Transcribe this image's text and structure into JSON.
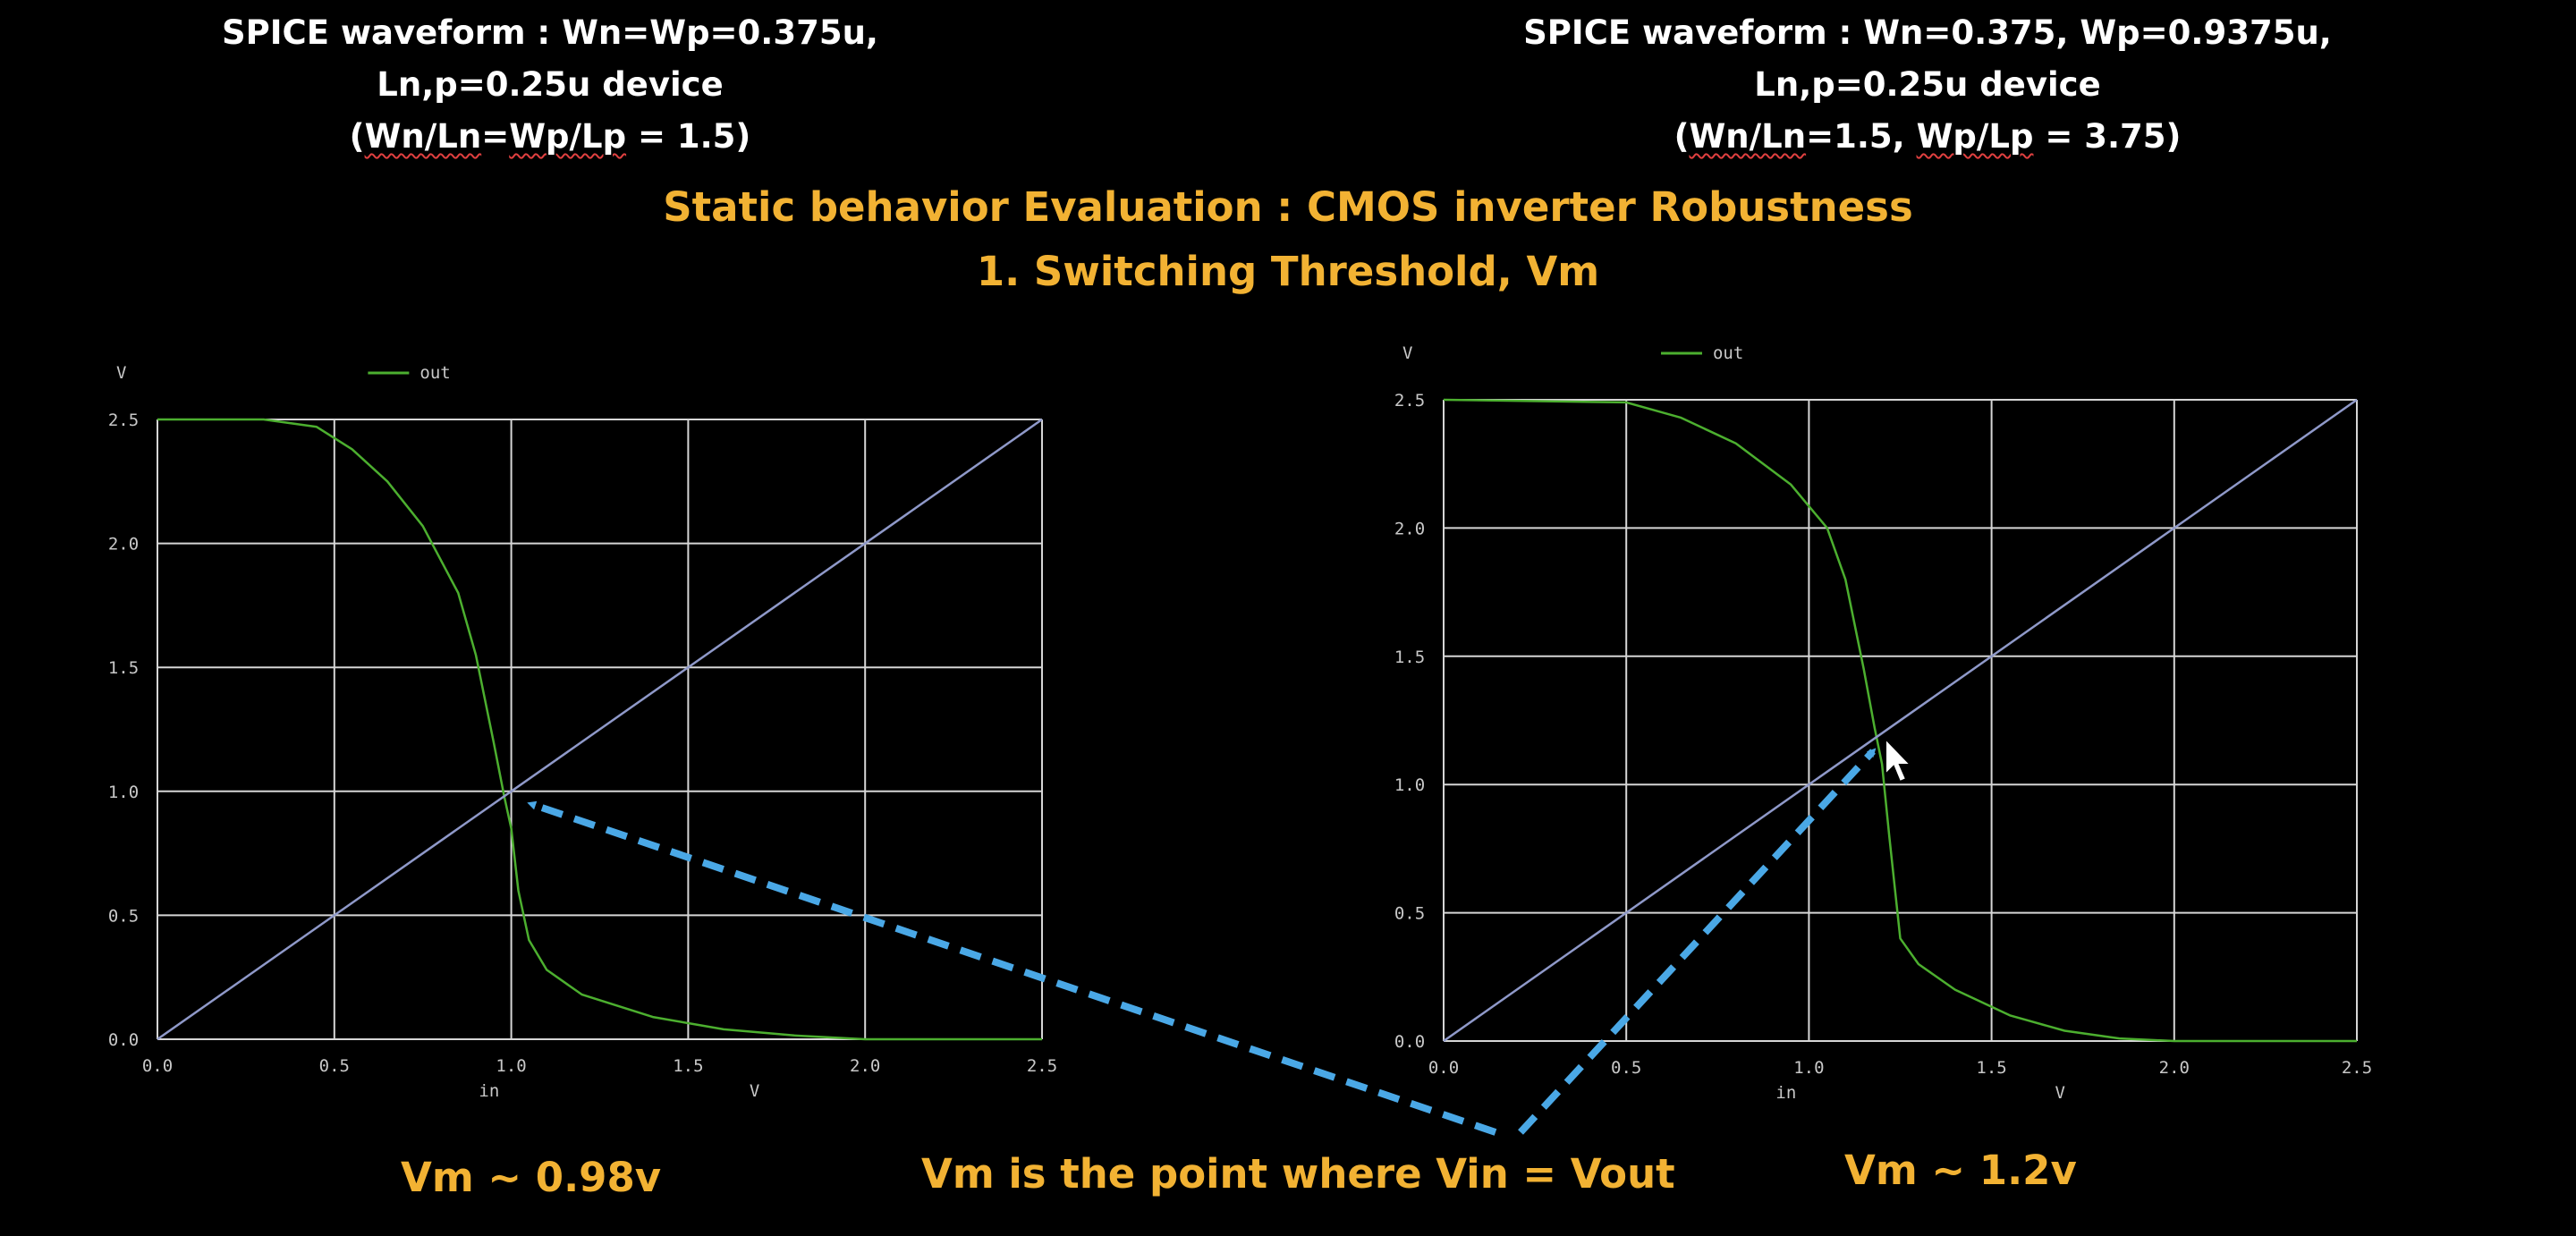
{
  "captions": {
    "left": {
      "line1": "SPICE waveform : Wn=Wp=0.375u,",
      "line2": "Ln,p=0.25u device",
      "line3_open": "(",
      "line3_a": "Wn/Ln",
      "line3_mid": "=",
      "line3_b": "Wp/Lp",
      "line3_end": " = 1.5)"
    },
    "right": {
      "line1": "SPICE waveform : Wn=0.375, Wp=0.9375u,",
      "line2": "Ln,p=0.25u device",
      "line3_open": "(",
      "line3_a": "Wn/Ln",
      "line3_mid": "=1.5, ",
      "line3_b": "Wp/Lp",
      "line3_end": " = 3.75)"
    }
  },
  "heading": {
    "line1": "Static behavior Evaluation : CMOS inverter Robustness",
    "line2": "1. Switching Threshold, Vm"
  },
  "annotations": {
    "left_vm": "Vm ~ 0.98v",
    "right_vm": "Vm ~ 1.2v",
    "center": "Vm is the point where Vin = Vout"
  },
  "colors": {
    "background": "#000000",
    "grid": "#d6d6d6",
    "out_curve": "#4caf2f",
    "reference_line": "#8f99c9",
    "arrow": "#4aa8e6",
    "highlight_text": "#f2b233"
  },
  "chart_data": [
    {
      "type": "line",
      "ylabel": "V",
      "xlabel": "in",
      "xunit": "V",
      "xlim": [
        0,
        2.5
      ],
      "ylim": [
        0,
        2.5
      ],
      "xticks": [
        "0.0",
        "0.5",
        "1.0",
        "1.5",
        "2.0",
        "2.5"
      ],
      "yticks": [
        "0.0",
        "0.5",
        "1.0",
        "1.5",
        "2.0",
        "2.5"
      ],
      "grid": true,
      "legend": "top-center",
      "series": [
        {
          "name": "out",
          "x": [
            0,
            0.3,
            0.45,
            0.55,
            0.65,
            0.75,
            0.85,
            0.9,
            0.95,
            0.98,
            1.0,
            1.02,
            1.05,
            1.1,
            1.2,
            1.4,
            1.6,
            1.8,
            2.0,
            2.5
          ],
          "y": [
            2.5,
            2.5,
            2.47,
            2.38,
            2.25,
            2.07,
            1.8,
            1.55,
            1.2,
            0.98,
            0.85,
            0.6,
            0.4,
            0.28,
            0.18,
            0.09,
            0.04,
            0.015,
            0.0,
            0.0
          ]
        },
        {
          "name": "",
          "x": [
            0,
            2.5
          ],
          "y": [
            0,
            2.5
          ]
        }
      ]
    },
    {
      "type": "line",
      "ylabel": "V",
      "xlabel": "in",
      "xunit": "V",
      "xlim": [
        0,
        2.5
      ],
      "ylim": [
        0,
        2.5
      ],
      "xticks": [
        "0.0",
        "0.5",
        "1.0",
        "1.5",
        "2.0",
        "2.5"
      ],
      "yticks": [
        "0.0",
        "0.5",
        "1.0",
        "1.5",
        "2.0",
        "2.5"
      ],
      "grid": true,
      "legend": "top-center",
      "series": [
        {
          "name": "out",
          "x": [
            0,
            0.5,
            0.65,
            0.8,
            0.95,
            1.05,
            1.1,
            1.15,
            1.18,
            1.2,
            1.22,
            1.25,
            1.3,
            1.4,
            1.55,
            1.7,
            1.85,
            2.0,
            2.5
          ],
          "y": [
            2.5,
            2.49,
            2.43,
            2.33,
            2.17,
            2.0,
            1.8,
            1.45,
            1.22,
            1.08,
            0.8,
            0.4,
            0.3,
            0.2,
            0.1,
            0.04,
            0.01,
            0.0,
            0.0
          ]
        },
        {
          "name": "",
          "x": [
            0,
            2.5
          ],
          "y": [
            0,
            2.5
          ]
        }
      ]
    }
  ]
}
